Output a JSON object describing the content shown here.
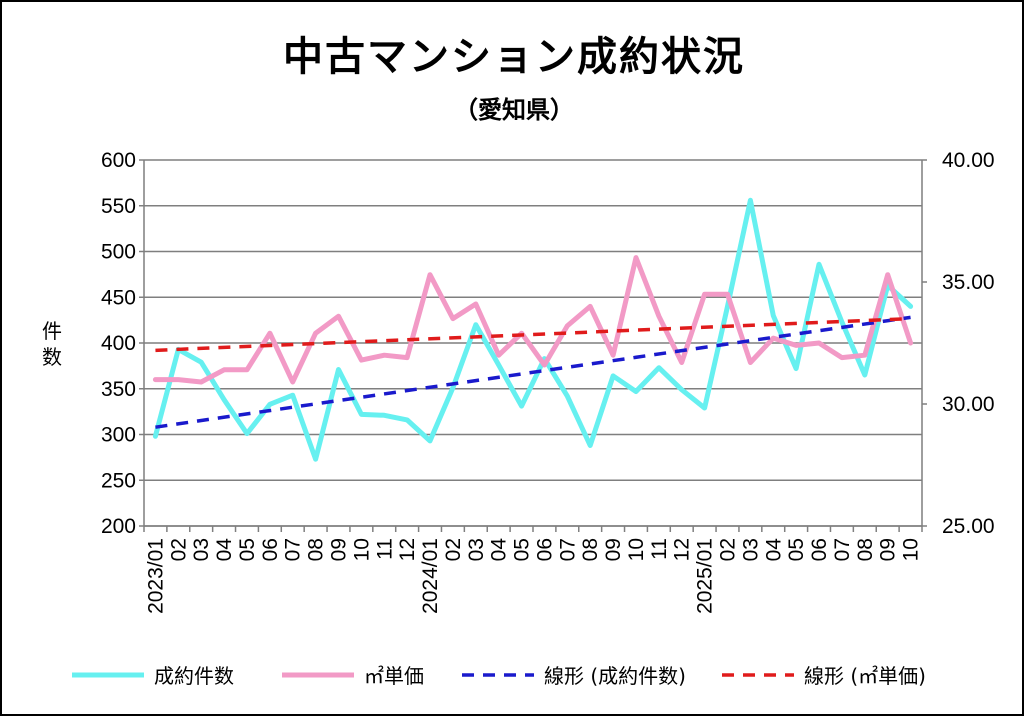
{
  "chart_data": {
    "type": "line",
    "title": "中古マンション成約状況",
    "subtitle": "（愛知県）",
    "ylabel_left": "件数",
    "categories": [
      "2023/01",
      "02",
      "03",
      "04",
      "05",
      "06",
      "07",
      "08",
      "09",
      "10",
      "11",
      "12",
      "2024/01",
      "02",
      "03",
      "04",
      "05",
      "06",
      "07",
      "08",
      "09",
      "10",
      "11",
      "12",
      "2025/01",
      "02",
      "03",
      "04",
      "05",
      "06",
      "07",
      "08",
      "09",
      "10"
    ],
    "ylim_left": [
      200,
      600
    ],
    "yticks_left": [
      "200",
      "250",
      "300",
      "350",
      "400",
      "450",
      "500",
      "550",
      "600"
    ],
    "ylim_right": [
      25,
      40
    ],
    "yticks_right": [
      "25.00",
      "30.00",
      "35.00",
      "40.00"
    ],
    "grid": true,
    "legend_position": "bottom",
    "series": [
      {
        "name": "成約件数",
        "axis": "left",
        "color": "#66F0F0",
        "style": "solid",
        "values": [
          298,
          393,
          379,
          338,
          301,
          333,
          343,
          273,
          371,
          322,
          321,
          316,
          293,
          351,
          420,
          376,
          331,
          383,
          342,
          288,
          364,
          347,
          373,
          349,
          329,
          440,
          556,
          430,
          372,
          486,
          423,
          365,
          463,
          440
        ]
      },
      {
        "name": "㎡単価",
        "axis": "right",
        "color": "#F29AC6",
        "style": "solid",
        "values": [
          31.0,
          31.0,
          30.9,
          31.4,
          31.4,
          32.9,
          30.9,
          32.9,
          33.6,
          31.8,
          32.0,
          31.9,
          35.3,
          33.5,
          34.1,
          32.0,
          32.9,
          31.6,
          33.2,
          34.0,
          32.0,
          36.0,
          33.6,
          31.7,
          34.5,
          34.5,
          31.7,
          32.7,
          32.4,
          32.5,
          31.9,
          32.0,
          35.3,
          32.5
        ]
      },
      {
        "name": "線形 (成約件数)",
        "axis": "left",
        "color": "#1A1ACC",
        "style": "dashed",
        "trend": [
          308,
          428
        ]
      },
      {
        "name": "線形 (㎡単価)",
        "axis": "right",
        "color": "#E01B1B",
        "style": "dashed",
        "trend": [
          32.2,
          33.5
        ]
      }
    ]
  },
  "legend": {
    "items": [
      {
        "label": "成約件数",
        "color": "#66F0F0",
        "style": "solid"
      },
      {
        "label": "㎡単価",
        "color": "#F29AC6",
        "style": "solid"
      },
      {
        "label": "線形 (成約件数)",
        "color": "#1A1ACC",
        "style": "dashed"
      },
      {
        "label": "線形 (㎡単価)",
        "color": "#E01B1B",
        "style": "dashed"
      }
    ]
  }
}
